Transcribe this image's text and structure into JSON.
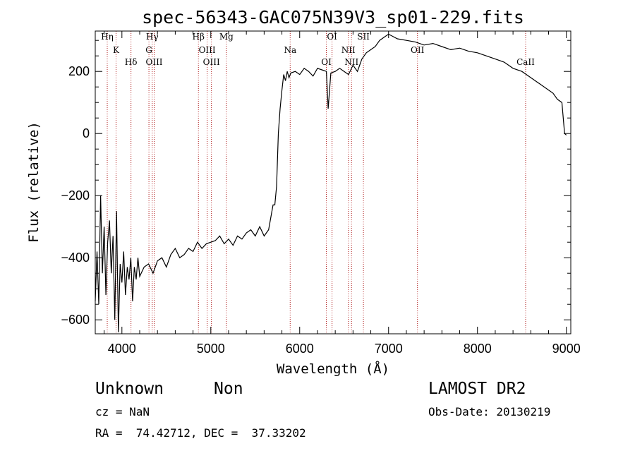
{
  "chart_data": {
    "type": "line",
    "title": "spec-56343-GAC075N39V3_sp01-229.fits",
    "xlabel": "Wavelength (Å)",
    "ylabel": "Flux (relative)",
    "xlim": [
      3700,
      9050
    ],
    "ylim": [
      -645,
      330
    ],
    "xticks": [
      4000,
      5000,
      6000,
      7000,
      8000,
      9000
    ],
    "yticks": [
      -600,
      -400,
      -200,
      0,
      200
    ],
    "series": [
      {
        "color": "#000000",
        "x": [
          3700,
          3720,
          3740,
          3760,
          3780,
          3800,
          3820,
          3840,
          3860,
          3880,
          3900,
          3920,
          3940,
          3960,
          3980,
          4000,
          4020,
          4040,
          4060,
          4080,
          4100,
          4120,
          4140,
          4160,
          4180,
          4200,
          4250,
          4300,
          4350,
          4400,
          4450,
          4500,
          4550,
          4600,
          4650,
          4700,
          4750,
          4800,
          4850,
          4900,
          4950,
          5000,
          5050,
          5100,
          5150,
          5200,
          5250,
          5300,
          5350,
          5400,
          5450,
          5500,
          5550,
          5600,
          5650,
          5700,
          5720,
          5740,
          5760,
          5780,
          5800,
          5820,
          5840,
          5860,
          5880,
          5900,
          5950,
          6000,
          6050,
          6100,
          6150,
          6200,
          6250,
          6300,
          6320,
          6350,
          6400,
          6450,
          6500,
          6550,
          6600,
          6650,
          6700,
          6750,
          6800,
          6850,
          6900,
          6950,
          7000,
          7100,
          7200,
          7300,
          7400,
          7500,
          7600,
          7700,
          7800,
          7900,
          8000,
          8100,
          8200,
          8300,
          8400,
          8500,
          8600,
          8700,
          8800,
          8850,
          8900,
          8950,
          8980,
          9000
        ],
        "y": [
          -540,
          -380,
          -550,
          -200,
          -450,
          -300,
          -520,
          -350,
          -280,
          -450,
          -330,
          -600,
          -250,
          -640,
          -420,
          -480,
          -380,
          -520,
          -430,
          -470,
          -400,
          -540,
          -430,
          -470,
          -400,
          -460,
          -430,
          -420,
          -450,
          -410,
          -400,
          -430,
          -390,
          -370,
          -400,
          -390,
          -370,
          -380,
          -350,
          -370,
          -355,
          -350,
          -345,
          -330,
          -355,
          -340,
          -360,
          -330,
          -340,
          -320,
          -310,
          -330,
          -300,
          -330,
          -310,
          -230,
          -230,
          -170,
          0,
          80,
          140,
          190,
          170,
          200,
          180,
          195,
          200,
          190,
          210,
          200,
          185,
          210,
          205,
          200,
          80,
          195,
          200,
          210,
          200,
          190,
          220,
          200,
          240,
          260,
          270,
          280,
          300,
          310,
          320,
          305,
          300,
          295,
          285,
          290,
          280,
          270,
          275,
          265,
          260,
          250,
          240,
          230,
          210,
          200,
          180,
          160,
          140,
          130,
          110,
          100,
          0,
          -5
        ]
      }
    ],
    "vlines": [
      {
        "label": "Hη",
        "x": 3835
      },
      {
        "label": "K",
        "x": 3934
      },
      {
        "label": "Hδ",
        "x": 4102
      },
      {
        "label": "Hγ",
        "x": 4341
      },
      {
        "label": "G",
        "x": 4304
      },
      {
        "label": "OIII",
        "x": 4363
      },
      {
        "label": "Hβ",
        "x": 4861
      },
      {
        "label": "OIII",
        "x": 4959
      },
      {
        "label": "OIII",
        "x": 5007
      },
      {
        "label": "Mg",
        "x": 5175
      },
      {
        "label": "Na",
        "x": 5893
      },
      {
        "label": "OI",
        "x": 6300
      },
      {
        "label": "OI",
        "x": 6364
      },
      {
        "label": "NII",
        "x": 6548
      },
      {
        "label": "NII",
        "x": 6583
      },
      {
        "label": "SII",
        "x": 6717
      },
      {
        "label": "OII",
        "x": 7325
      },
      {
        "label": "CaII",
        "x": 8542
      }
    ],
    "vline_color": "#b22222",
    "grid": false,
    "legend": "none"
  },
  "info": {
    "obj_class": "Unknown",
    "obj_subclass": "Non",
    "survey": "LAMOST DR2",
    "cz": "cz = NaN",
    "obs_date": "Obs-Date: 20130219",
    "radec": "RA =  74.42712, DEC =  37.33202"
  }
}
